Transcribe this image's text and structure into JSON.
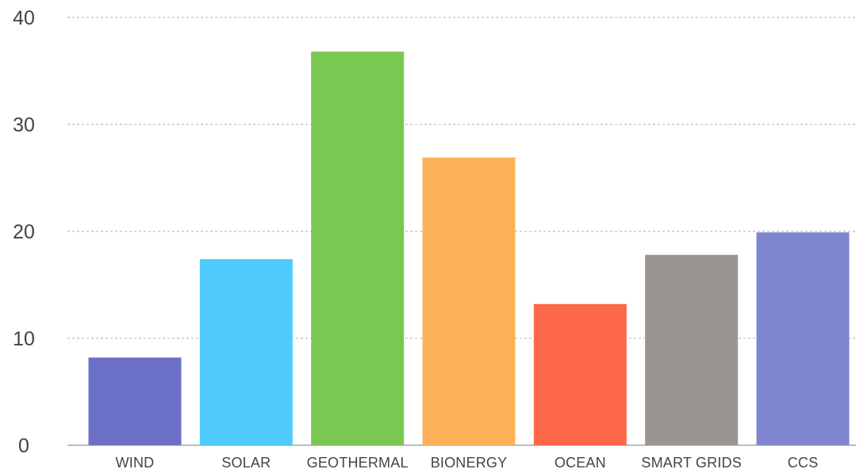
{
  "chart_data": {
    "type": "bar",
    "title": "",
    "xlabel": "",
    "ylabel": "",
    "categories": [
      "WIND",
      "SOLAR",
      "GEOTHERMAL",
      "BIONERGY",
      "OCEAN",
      "SMART GRIDS",
      "CCS"
    ],
    "values": [
      8.2,
      17.4,
      36.8,
      26.9,
      13.2,
      17.8,
      19.9
    ],
    "colors": [
      "#6b6fc6",
      "#4ecbfc",
      "#7ac752",
      "#fdb25a",
      "#fd674a",
      "#9a9590",
      "#7f86cf"
    ],
    "ylim": [
      0,
      40
    ],
    "yticks": [
      0,
      10,
      20,
      30,
      40
    ],
    "ytick_labels": [
      "0",
      "10",
      "20",
      "30",
      "40"
    ],
    "grid": true,
    "legend": "none"
  }
}
